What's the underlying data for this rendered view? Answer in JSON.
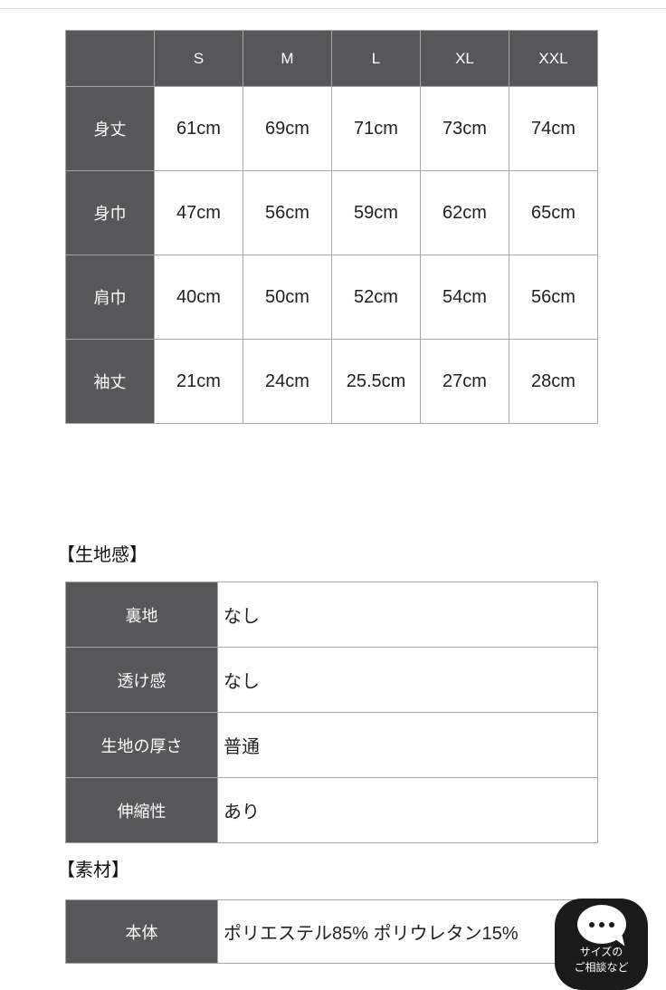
{
  "size_table": {
    "corner": "",
    "columns": [
      "S",
      "M",
      "L",
      "XL",
      "XXL"
    ],
    "rows": [
      {
        "label": "身丈",
        "values": [
          "61cm",
          "69cm",
          "71cm",
          "73cm",
          "74cm"
        ]
      },
      {
        "label": "身巾",
        "values": [
          "47cm",
          "56cm",
          "59cm",
          "62cm",
          "65cm"
        ]
      },
      {
        "label": "肩巾",
        "values": [
          "40cm",
          "50cm",
          "52cm",
          "54cm",
          "56cm"
        ]
      },
      {
        "label": "袖丈",
        "values": [
          "21cm",
          "24cm",
          "25.5cm",
          "27cm",
          "28cm"
        ]
      }
    ]
  },
  "fabric_section": {
    "heading": "【生地感】",
    "rows": [
      {
        "label": "裏地",
        "value": "なし"
      },
      {
        "label": "透け感",
        "value": "なし"
      },
      {
        "label": "生地の厚さ",
        "value": "普通"
      },
      {
        "label": "伸縮性",
        "value": "あり"
      }
    ]
  },
  "material_section": {
    "heading": "【素材】",
    "rows": [
      {
        "label": "本体",
        "value": "ポリエステル85% ポリウレタン15%"
      }
    ]
  },
  "chat_widget": {
    "label_line1": "サイズの",
    "label_line2": "ご相談など"
  },
  "colors": {
    "header_cell_bg": "#57575a",
    "header_cell_text": "#ffffff",
    "cell_text": "#1f1f1f",
    "table_border": "#a6a6a6",
    "chat_widget_bg": "#1a1a1a"
  }
}
